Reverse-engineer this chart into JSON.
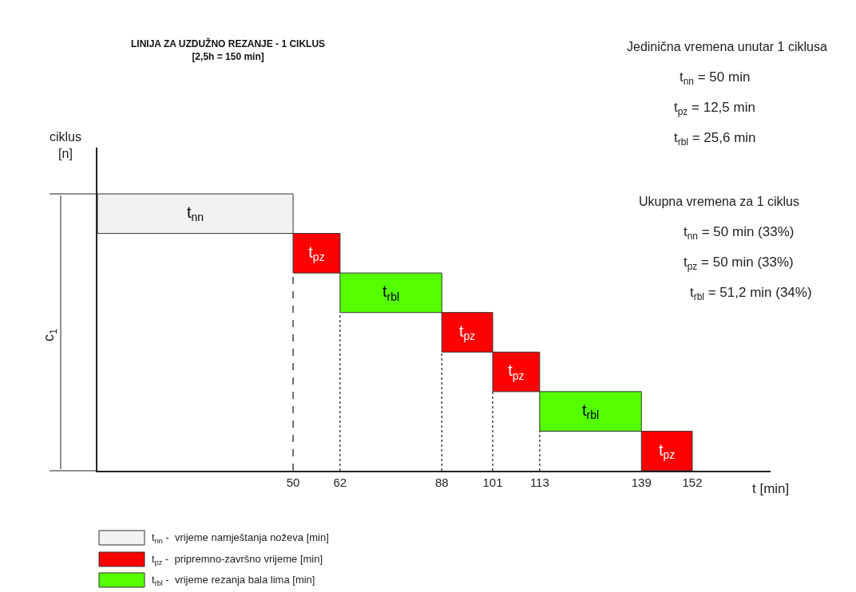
{
  "chart_data": {
    "type": "bar",
    "orientation": "horizontal",
    "title": "LINIJA ZA UZDUŽNO REZANJE - 1 CIKLUS",
    "subtitle": "[2,5h = 150 min]",
    "xlabel": "t [min]",
    "categories": [
      null,
      null,
      null,
      null,
      null,
      null,
      null
    ],
    "base": [
      0,
      50,
      62,
      88,
      101,
      113,
      139
    ],
    "values": [
      50,
      12,
      26,
      13,
      12,
      26,
      13
    ],
    "colors": [
      "#f2f2f2",
      "#ff0000",
      "#55ff00",
      "#ff0000",
      "#ff0000",
      "#55ff00",
      "#ff0000"
    ],
    "value_labels": [
      "t$_{nn}$",
      "t$_{pz}$",
      "t$_{rbl}$",
      "t$_{pz}$",
      "t$_{pz}$",
      "t$_{rbl}$",
      "t$_{pz}$"
    ],
    "xlim": [
      0,
      172
    ],
    "xticks": [
      50,
      62,
      88,
      101,
      113,
      139,
      152
    ],
    "tick_labels": "x",
    "ref_lines": [
      {
        "axis": "x",
        "value": 50,
        "line_style": "dashed"
      },
      {
        "axis": "x",
        "value": 62,
        "line_style": "dotted"
      },
      {
        "axis": "x",
        "value": 88,
        "line_style": "dotted"
      },
      {
        "axis": "x",
        "value": 101,
        "line_style": "dotted"
      },
      {
        "axis": "x",
        "value": 113,
        "line_style": "dotted"
      }
    ],
    "annotations": [
      "Jedinična vremena unutar 1 ciklusa",
      "t$_{nn}$ = 50 min",
      "t$_{pz}$ = 12,5 min",
      "t$_{rbl}$ = 25,6 min",
      "Ukupna vremena za 1 ciklus",
      "t$_{nn}$ = 50 min (33%)",
      "t$_{pz}$ = 50 min (33%)",
      "t$_{rbl}$ = 51,2 min (34%)",
      "c$_{1}$",
      "ciklus [n]",
      "t$_{nn}$ -  vrijeme namještanja noževa [min]",
      "t$_{pz}$ -  pripremno-završno vrijeme [min]",
      "t$_{rbl}$ -  vrijeme rezanja bala lima [min]"
    ]
  }
}
